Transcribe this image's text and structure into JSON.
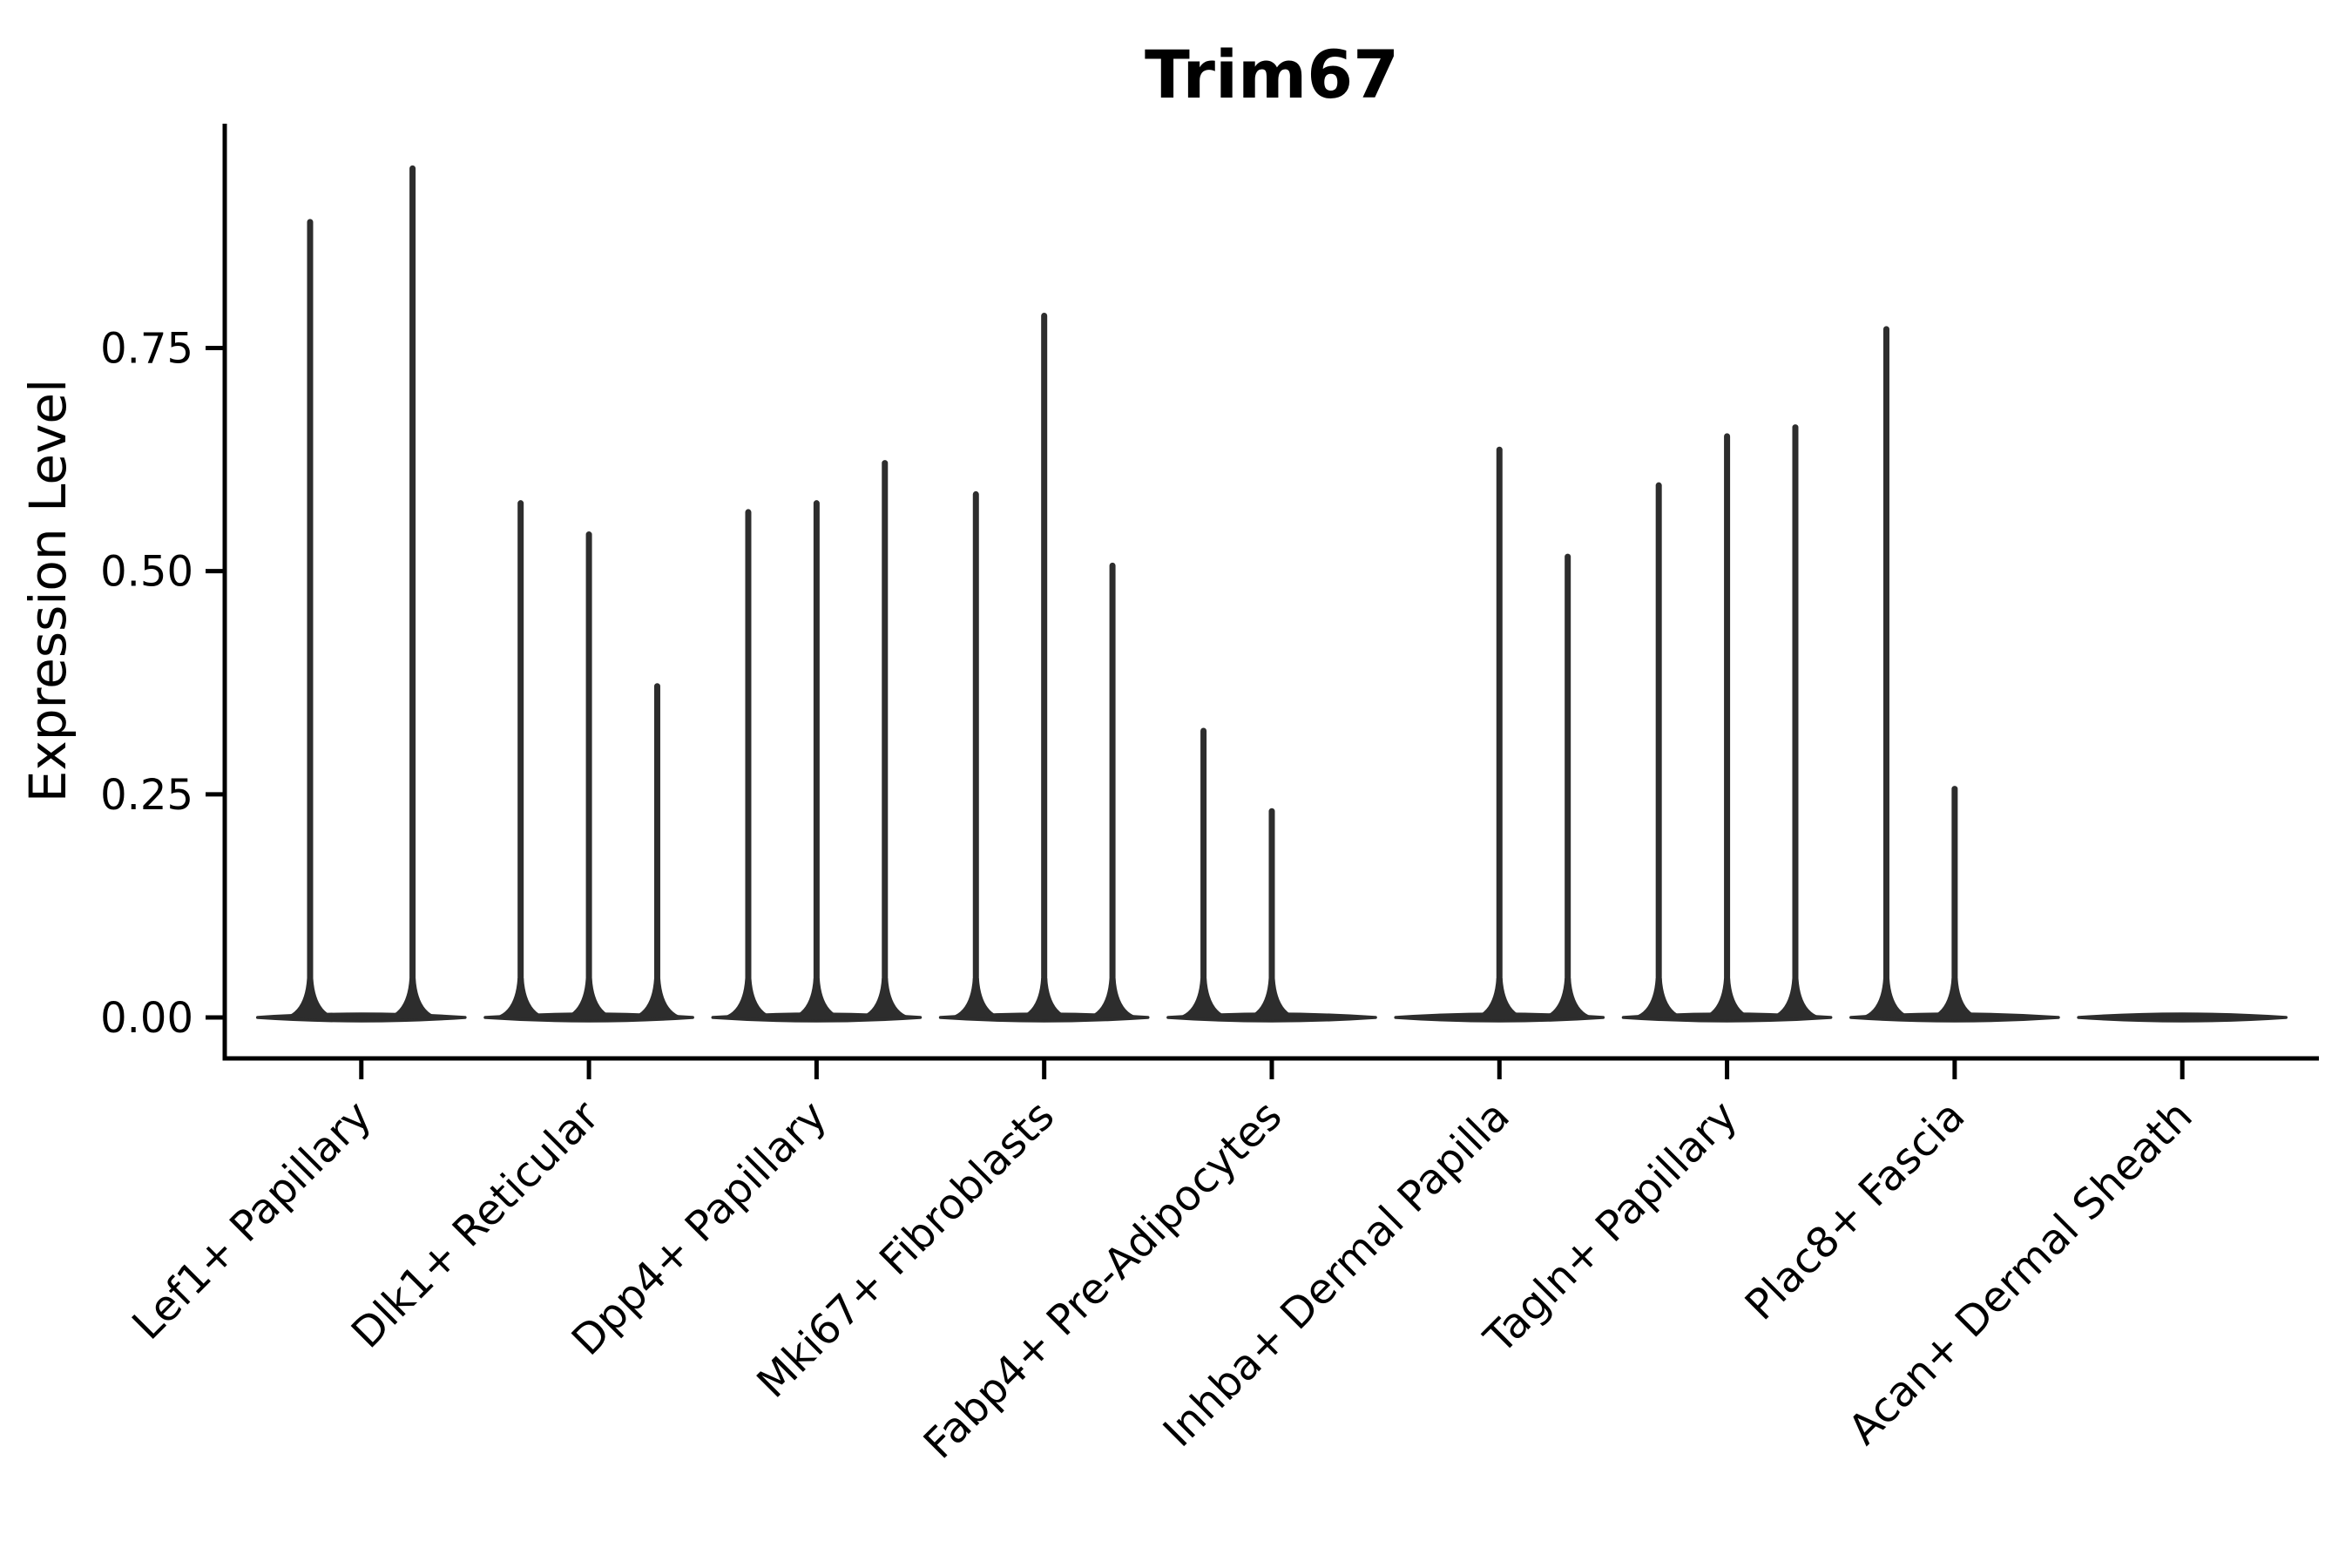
{
  "chart_data": {
    "type": "violin",
    "title": "Trim67",
    "ylabel": "Expression Level",
    "xlabel": "",
    "ylim": [
      0,
      1.0
    ],
    "grid": false,
    "legend": false,
    "y_tick_values": [
      0,
      0.25,
      0.5,
      0.75
    ],
    "y_tick_labels": [
      "0.00",
      "0.25",
      "0.50",
      "0.75"
    ],
    "categories": [
      "Lef1+ Papillary",
      "Dlk1+ Reticular",
      "Dpp4+ Papillary",
      "Mki67+ Fibroblasts",
      "Fabp4+ Pre-Adipocytes",
      "Inhba+ Dermal Papilla",
      "Tagln+ Papillary",
      "Plac8+ Fascia",
      "Acan+ Dermal Sheath"
    ],
    "series_note": "Each category holds dodged collapsed violins; value = max expression spike height, 0 = flat violin at baseline",
    "groups": [
      {
        "category": "Lef1+ Papillary",
        "violin_maxima": [
          0.895,
          0.955
        ]
      },
      {
        "category": "Dlk1+ Reticular",
        "violin_maxima": [
          0.58,
          0.545,
          0.375
        ]
      },
      {
        "category": "Dpp4+ Papillary",
        "violin_maxima": [
          0.57,
          0.58,
          0.625
        ]
      },
      {
        "category": "Mki67+ Fibroblasts",
        "violin_maxima": [
          0.59,
          0.79,
          0.51
        ]
      },
      {
        "category": "Fabp4+ Pre-Adipocytes",
        "violin_maxima": [
          0.325,
          0.235,
          0
        ]
      },
      {
        "category": "Inhba+ Dermal Papilla",
        "violin_maxima": [
          0,
          0.64,
          0.52
        ]
      },
      {
        "category": "Tagln+ Papillary",
        "violin_maxima": [
          0.6,
          0.655,
          0.665
        ]
      },
      {
        "category": "Plac8+ Fascia",
        "violin_maxima": [
          0.775,
          0.26,
          0
        ]
      },
      {
        "category": "Acan+ Dermal Sheath",
        "violin_maxima": [
          0,
          0,
          0
        ]
      }
    ],
    "colors": {
      "violin": "#2d2d2d",
      "axis": "#000000",
      "text": "#000000",
      "background": "#ffffff"
    }
  }
}
